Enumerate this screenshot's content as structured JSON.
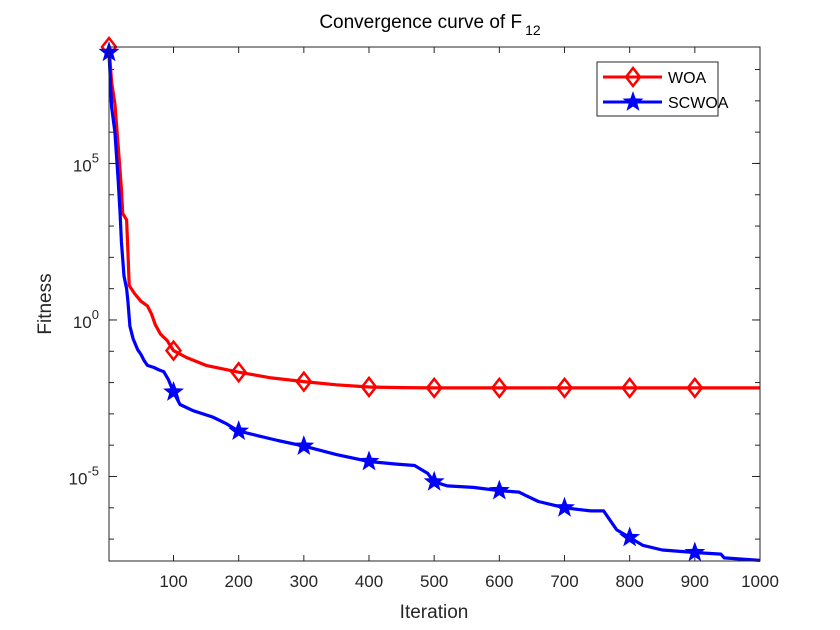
{
  "chart_data": {
    "type": "line",
    "title": "Convergence curve of F",
    "title_subscript": "12",
    "xlabel": "Iteration",
    "ylabel": "Fitness",
    "yscale": "log",
    "xlim": [
      1,
      1000
    ],
    "ylim_log10": [
      -7.7,
      8.72
    ],
    "xticks": [
      100,
      200,
      300,
      400,
      500,
      600,
      700,
      800,
      900,
      1000
    ],
    "yticks": [
      {
        "base": "10",
        "exp": "5",
        "log10": 5
      },
      {
        "base": "10",
        "exp": "0",
        "log10": 0
      },
      {
        "base": "10",
        "exp": "-5",
        "log10": -5
      }
    ],
    "grid": false,
    "legend": {
      "position": "top-right",
      "entries": [
        "WOA",
        "SCWOA"
      ]
    },
    "series": [
      {
        "name": "WOA",
        "color": "#ff0000",
        "marker": "diamond",
        "marker_x": [
          1,
          100,
          200,
          300,
          400,
          500,
          600,
          700,
          800,
          900
        ],
        "log10_values": [
          [
            1,
            8.72
          ],
          [
            5,
            7.6
          ],
          [
            10,
            6.9
          ],
          [
            15,
            5.6
          ],
          [
            20,
            4.2
          ],
          [
            22,
            3.4
          ],
          [
            28,
            3.2
          ],
          [
            30,
            2.2
          ],
          [
            32,
            1.1
          ],
          [
            40,
            0.85
          ],
          [
            50,
            0.6
          ],
          [
            60,
            0.45
          ],
          [
            66,
            0.2
          ],
          [
            72,
            -0.15
          ],
          [
            80,
            -0.45
          ],
          [
            90,
            -0.65
          ],
          [
            100,
            -0.98
          ],
          [
            120,
            -1.2
          ],
          [
            150,
            -1.45
          ],
          [
            200,
            -1.67
          ],
          [
            250,
            -1.85
          ],
          [
            300,
            -1.97
          ],
          [
            350,
            -2.07
          ],
          [
            400,
            -2.14
          ],
          [
            450,
            -2.16
          ],
          [
            500,
            -2.17
          ],
          [
            600,
            -2.17
          ],
          [
            700,
            -2.17
          ],
          [
            800,
            -2.17
          ],
          [
            900,
            -2.17
          ],
          [
            1000,
            -2.17
          ]
        ]
      },
      {
        "name": "SCWOA",
        "color": "#0000ff",
        "marker": "star",
        "marker_x": [
          1,
          100,
          200,
          300,
          400,
          500,
          600,
          700,
          800,
          900
        ],
        "log10_values": [
          [
            1,
            8.55
          ],
          [
            5,
            6.8
          ],
          [
            10,
            6.0
          ],
          [
            15,
            4.5
          ],
          [
            18,
            3.4
          ],
          [
            20,
            2.5
          ],
          [
            24,
            1.4
          ],
          [
            28,
            1.0
          ],
          [
            30,
            0.6
          ],
          [
            33,
            -0.2
          ],
          [
            38,
            -0.6
          ],
          [
            45,
            -0.95
          ],
          [
            50,
            -1.1
          ],
          [
            55,
            -1.3
          ],
          [
            60,
            -1.45
          ],
          [
            70,
            -1.52
          ],
          [
            78,
            -1.6
          ],
          [
            85,
            -1.65
          ],
          [
            92,
            -1.9
          ],
          [
            100,
            -2.3
          ],
          [
            110,
            -2.7
          ],
          [
            130,
            -2.9
          ],
          [
            160,
            -3.1
          ],
          [
            180,
            -3.3
          ],
          [
            200,
            -3.55
          ],
          [
            230,
            -3.7
          ],
          [
            260,
            -3.85
          ],
          [
            300,
            -4.03
          ],
          [
            350,
            -4.3
          ],
          [
            400,
            -4.52
          ],
          [
            440,
            -4.6
          ],
          [
            470,
            -4.65
          ],
          [
            490,
            -4.9
          ],
          [
            500,
            -5.17
          ],
          [
            520,
            -5.3
          ],
          [
            560,
            -5.35
          ],
          [
            600,
            -5.45
          ],
          [
            630,
            -5.5
          ],
          [
            640,
            -5.6
          ],
          [
            660,
            -5.8
          ],
          [
            690,
            -5.95
          ],
          [
            700,
            -6.0
          ],
          [
            740,
            -6.1
          ],
          [
            760,
            -6.1
          ],
          [
            770,
            -6.4
          ],
          [
            780,
            -6.7
          ],
          [
            800,
            -6.95
          ],
          [
            820,
            -7.2
          ],
          [
            850,
            -7.35
          ],
          [
            900,
            -7.43
          ],
          [
            940,
            -7.48
          ],
          [
            945,
            -7.6
          ],
          [
            1000,
            -7.68
          ]
        ]
      }
    ]
  }
}
